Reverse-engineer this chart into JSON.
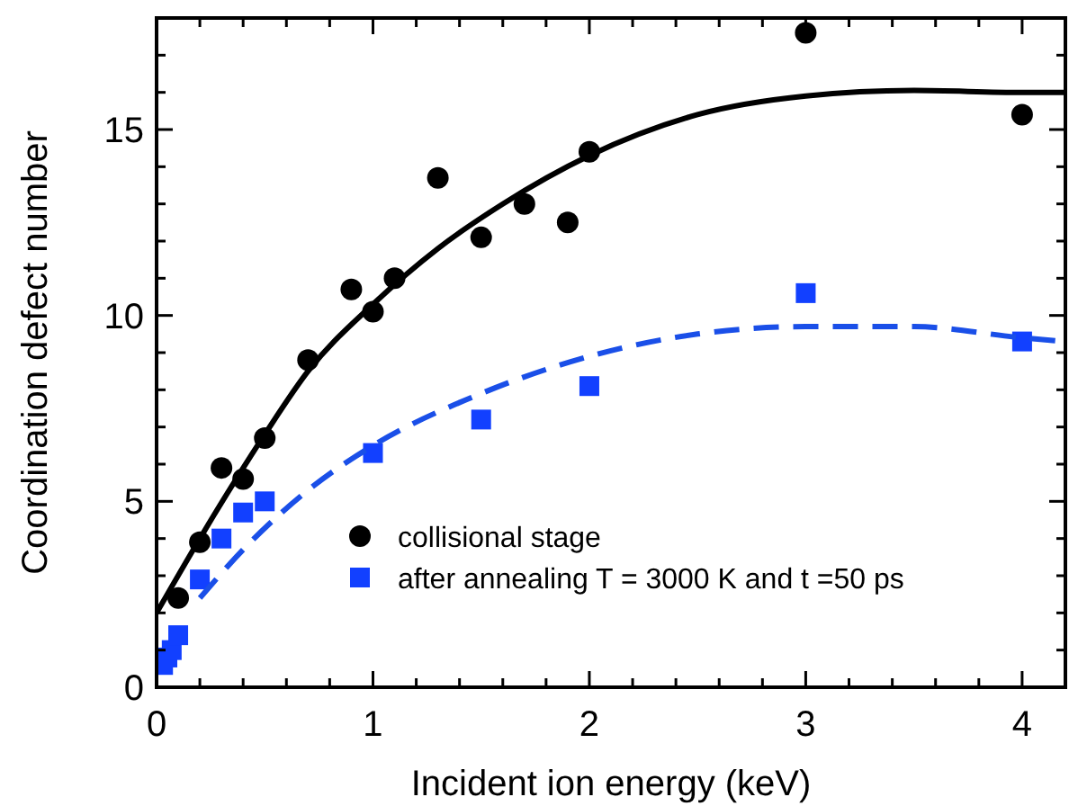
{
  "chart_data": {
    "type": "scatter",
    "xlabel": "Incident ion energy (keV)",
    "ylabel": "Coordination defect number",
    "xlim": [
      0,
      4.2
    ],
    "ylim": [
      0,
      18
    ],
    "xticks": [
      0,
      {
        "value": 0.2,
        "label": null
      },
      {
        "value": 0.4,
        "label": null
      },
      {
        "value": 0.6,
        "label": null
      },
      {
        "value": 0.8,
        "label": null
      },
      1,
      {
        "value": 1.2,
        "label": null
      },
      {
        "value": 1.4,
        "label": null
      },
      {
        "value": 1.6,
        "label": null
      },
      {
        "value": 1.8,
        "label": null
      },
      2,
      {
        "value": 2.2,
        "label": null
      },
      {
        "value": 2.4,
        "label": null
      },
      {
        "value": 2.6,
        "label": null
      },
      {
        "value": 2.8,
        "label": null
      },
      3,
      {
        "value": 3.2,
        "label": null
      },
      {
        "value": 3.4,
        "label": null
      },
      {
        "value": 3.6,
        "label": null
      },
      {
        "value": 3.8,
        "label": null
      },
      4
    ],
    "yticks": [
      0,
      {
        "value": 1,
        "label": null
      },
      {
        "value": 2,
        "label": null
      },
      {
        "value": 3,
        "label": null
      },
      {
        "value": 4,
        "label": null
      },
      5,
      {
        "value": 6,
        "label": null
      },
      {
        "value": 7,
        "label": null
      },
      {
        "value": 8,
        "label": null
      },
      {
        "value": 9,
        "label": null
      },
      10,
      {
        "value": 11,
        "label": null
      },
      {
        "value": 12,
        "label": null
      },
      {
        "value": 13,
        "label": null
      },
      {
        "value": 14,
        "label": null
      },
      15,
      {
        "value": 16,
        "label": null
      },
      {
        "value": 17,
        "label": null
      }
    ],
    "grid": false,
    "legend": "bottom",
    "series": [
      {
        "name": "collisional stage",
        "color": "#000000",
        "marker": "circle",
        "x": [
          0.1,
          0.2,
          0.3,
          0.4,
          0.5,
          0.7,
          0.9,
          1.0,
          1.1,
          1.3,
          1.5,
          1.7,
          1.9,
          2.0,
          3.0,
          4.0
        ],
        "values": [
          2.4,
          3.9,
          5.9,
          5.6,
          6.7,
          8.8,
          10.7,
          10.1,
          11.0,
          13.7,
          12.1,
          13.0,
          12.5,
          14.4,
          17.6,
          15.4
        ]
      },
      {
        "name": "after annealing T = 3000 K and t =50 ps",
        "color": "#1240ff",
        "marker": "square",
        "x": [
          0.03,
          0.05,
          0.07,
          0.1,
          0.2,
          0.3,
          0.4,
          0.5,
          1.0,
          1.5,
          2.0,
          3.0,
          4.0
        ],
        "values": [
          0.6,
          0.8,
          1.0,
          1.4,
          2.9,
          4.0,
          4.7,
          5.0,
          6.3,
          7.2,
          8.1,
          10.6,
          9.3
        ]
      },
      {
        "type": "line",
        "color": "#000000",
        "line_style": "solid",
        "x": [
          0,
          0.2,
          0.5,
          0.7,
          1.0,
          1.3,
          1.6,
          2.0,
          2.5,
          3.0,
          3.5,
          4.0,
          4.2
        ],
        "values": [
          2.0,
          4.0,
          6.8,
          8.5,
          10.3,
          11.8,
          13.0,
          14.3,
          15.4,
          15.9,
          16.05,
          16.0,
          16.0
        ]
      },
      {
        "type": "line",
        "color": "#1a4fe8",
        "line_style": "dashed",
        "x": [
          0.2,
          0.4,
          0.7,
          1.0,
          1.5,
          2.0,
          2.5,
          3.0,
          3.5,
          4.0,
          4.2
        ],
        "values": [
          2.4,
          3.7,
          5.3,
          6.5,
          7.9,
          8.9,
          9.5,
          9.7,
          9.7,
          9.4,
          9.3
        ]
      }
    ]
  }
}
